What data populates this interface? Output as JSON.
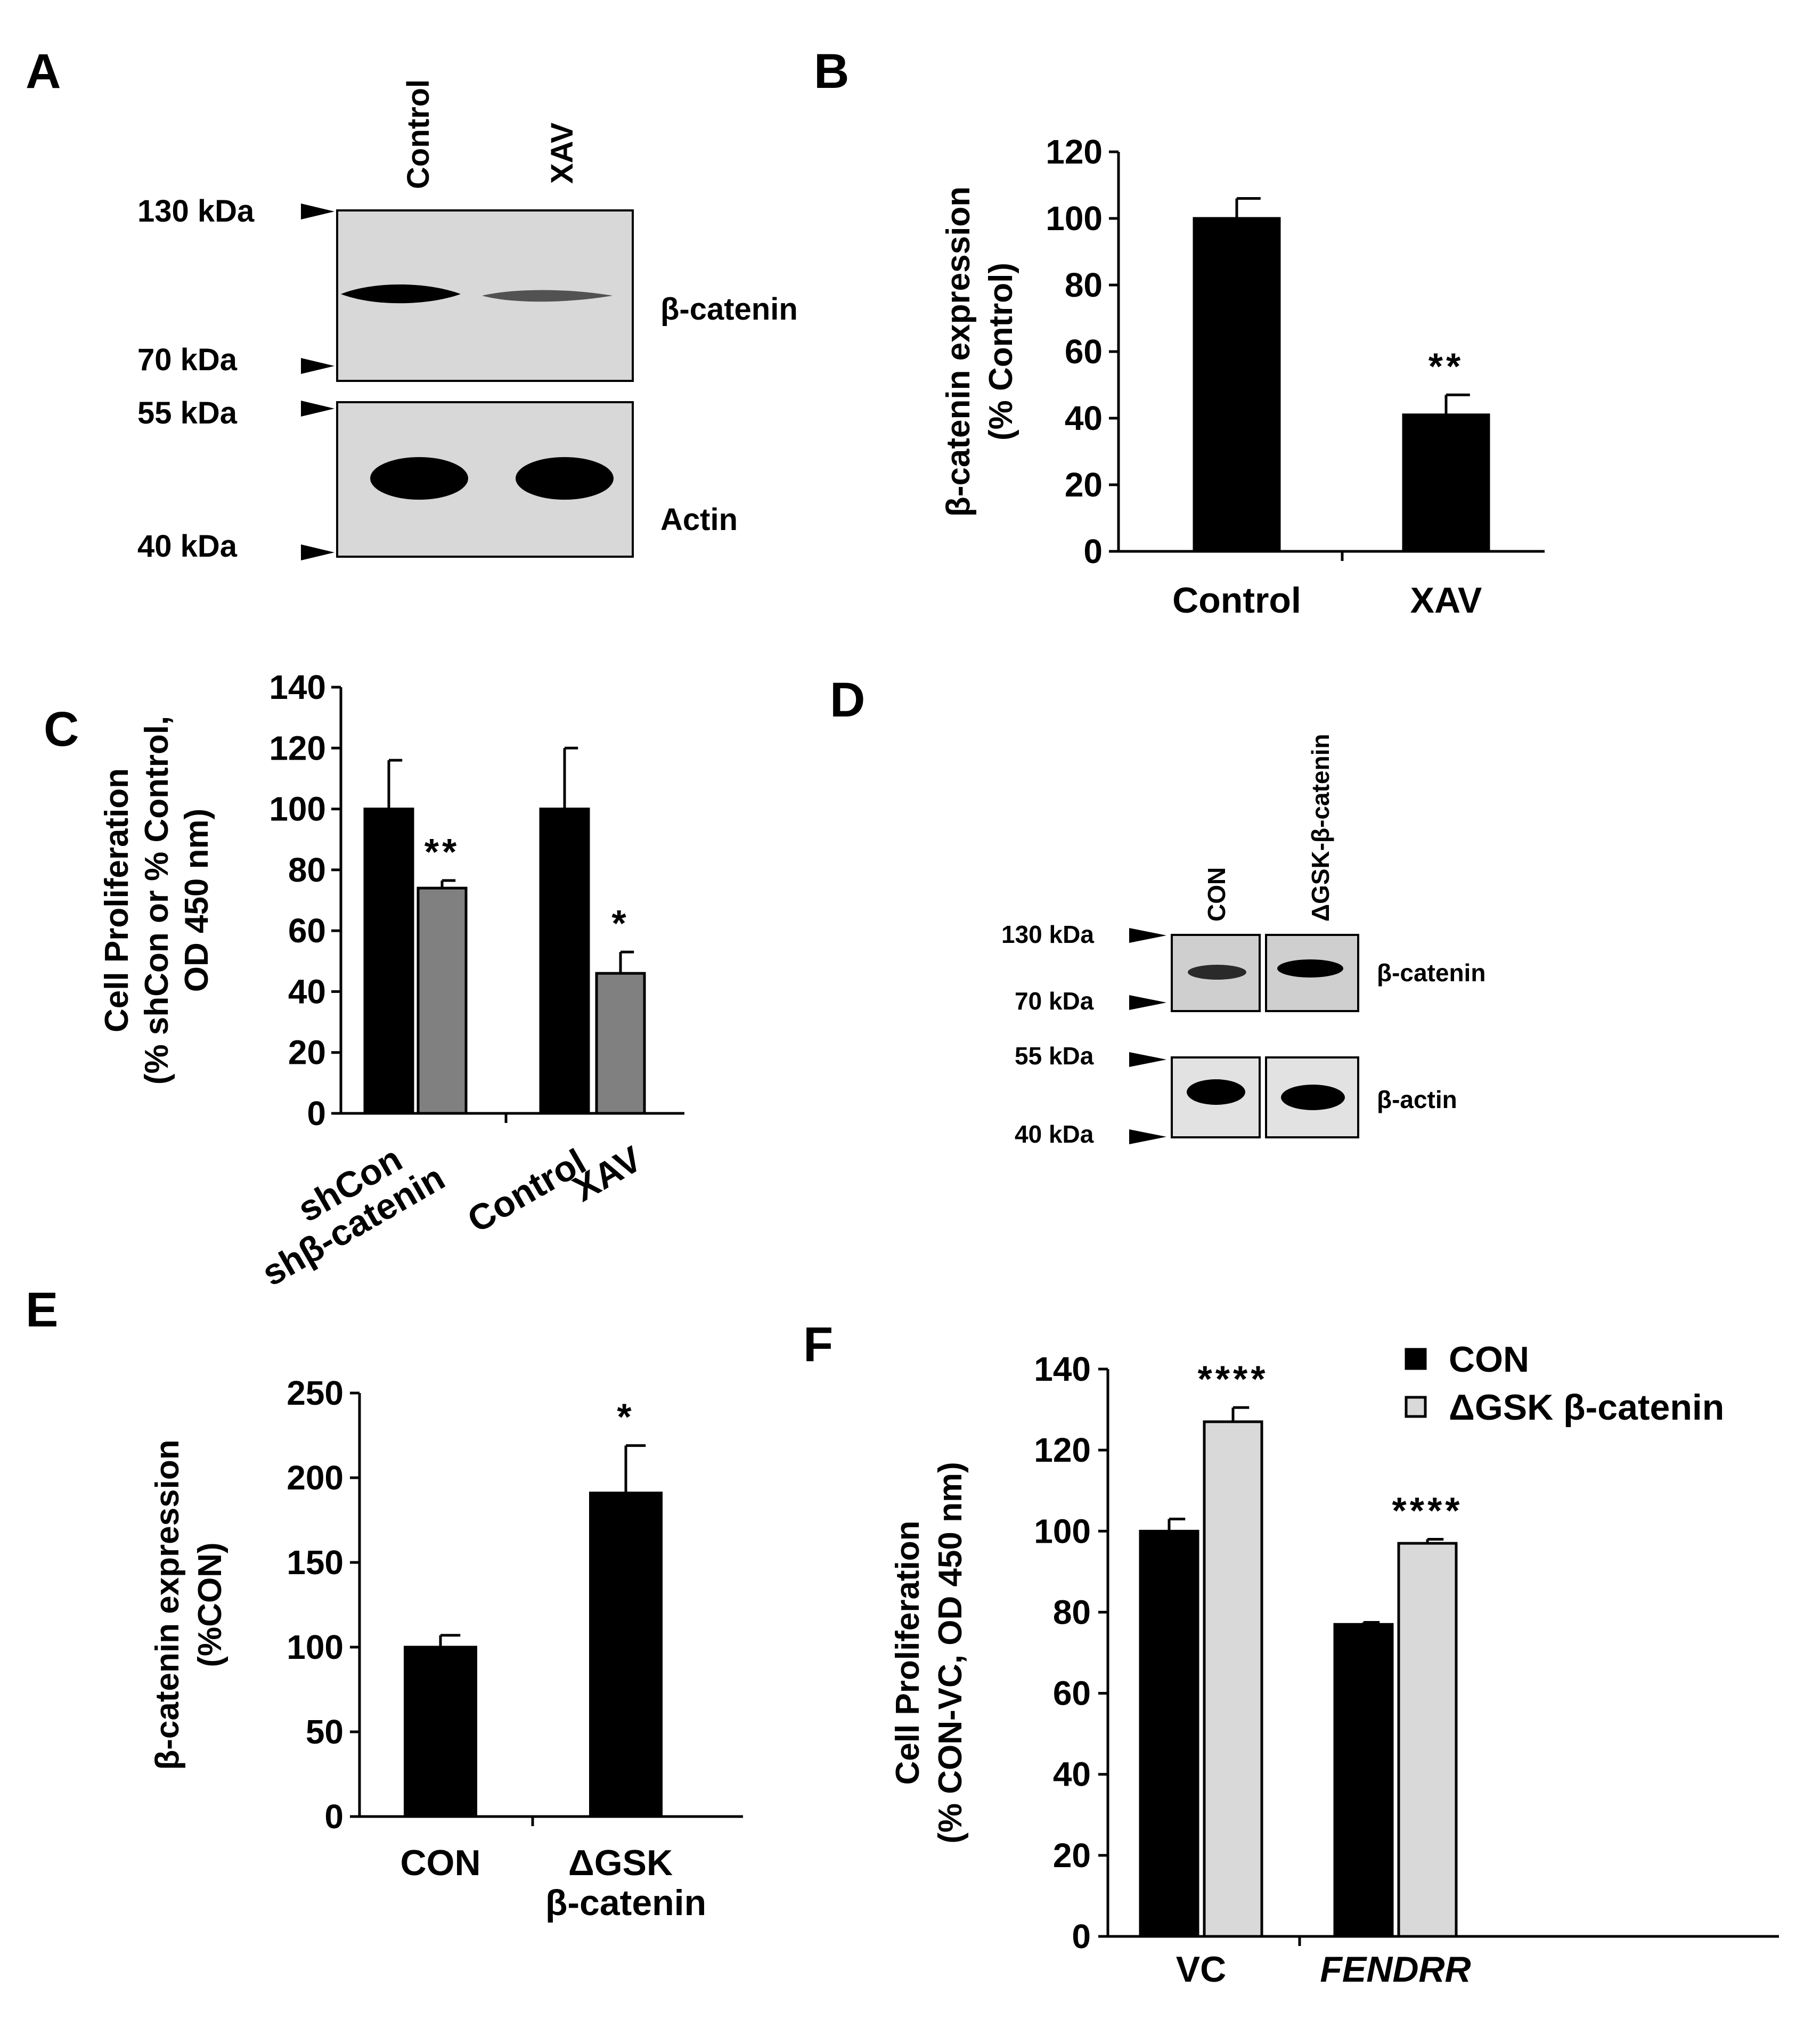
{
  "panels": {
    "A": {
      "label": "A",
      "lanes": [
        "Control",
        "XAV"
      ],
      "markers": [
        "130 kDa",
        "70 kDa",
        "55 kDa",
        "40 kDa"
      ],
      "band_labels": [
        "β-catenin",
        "Actin"
      ]
    },
    "D": {
      "label": "D",
      "lanes": [
        "CON",
        "ΔGSK-β-catenin"
      ],
      "markers": [
        "130 kDa",
        "70 kDa",
        "55 kDa",
        "40 kDa"
      ],
      "band_labels": [
        "β-catenin",
        "β-actin"
      ]
    }
  },
  "colors": {
    "black_bar": "#000000",
    "gray_bar": "#808080",
    "light_bar": "#d9d9d9",
    "blot_bg": "#d8d8d8",
    "band": "#000000"
  },
  "chart_data": [
    {
      "panel": "B",
      "type": "bar",
      "categories": [
        "Control",
        "XAV"
      ],
      "series": [
        {
          "values": [
            100,
            41
          ],
          "errors": [
            6,
            6
          ],
          "color": "#000000"
        }
      ],
      "significance": [
        "",
        "**"
      ],
      "ylabel": [
        "β-catenin expression",
        "(% Control)"
      ],
      "ylim": [
        0,
        120
      ],
      "yticks": [
        "0",
        "20",
        "40",
        "60",
        "80",
        "100",
        "120"
      ],
      "grid": false
    },
    {
      "panel": "C",
      "type": "bar",
      "categories": [
        "shCon",
        "shβ-catenin",
        "Control",
        "XAV"
      ],
      "values": [
        100,
        74,
        100,
        46
      ],
      "errors": [
        16,
        2.5,
        20,
        7
      ],
      "colors": [
        "#000000",
        "#808080",
        "#000000",
        "#808080"
      ],
      "significance": [
        "",
        "**",
        "",
        "*"
      ],
      "ylabel": [
        "Cell Proliferation",
        "(% shCon or % Control,",
        "OD 450 nm)"
      ],
      "ylim": [
        0,
        140
      ],
      "yticks": [
        "0",
        "20",
        "40",
        "60",
        "80",
        "100",
        "120",
        "140"
      ],
      "grid": false
    },
    {
      "panel": "E",
      "type": "bar",
      "categories": [
        "CON",
        "ΔGSK|β-catenin"
      ],
      "series": [
        {
          "values": [
            100,
            191
          ],
          "errors": [
            7,
            28
          ],
          "color": "#000000"
        }
      ],
      "significance": [
        "",
        "*"
      ],
      "ylabel": [
        "β-catenin expression",
        "(%CON)"
      ],
      "ylim": [
        0,
        250
      ],
      "yticks": [
        "0",
        "50",
        "100",
        "150",
        "200",
        "250"
      ],
      "grid": false
    },
    {
      "panel": "F",
      "type": "bar",
      "categories": [
        "VC",
        "FENDRR"
      ],
      "series": [
        {
          "name": "CON",
          "values": [
            100,
            77
          ],
          "errors": [
            3,
            0.5
          ],
          "color": "#000000"
        },
        {
          "name": "ΔGSK β-catenin",
          "values": [
            127,
            97
          ],
          "errors": [
            3.5,
            1
          ],
          "color": "#d9d9d9"
        }
      ],
      "significance": [
        "****",
        "****"
      ],
      "ylabel": [
        "Cell Proliferation",
        "(% CON-VC, OD 450 nm)"
      ],
      "ylim": [
        0,
        140
      ],
      "yticks": [
        "0",
        "20",
        "40",
        "60",
        "80",
        "100",
        "120",
        "140"
      ],
      "legend": "top-right",
      "grid": false
    }
  ]
}
